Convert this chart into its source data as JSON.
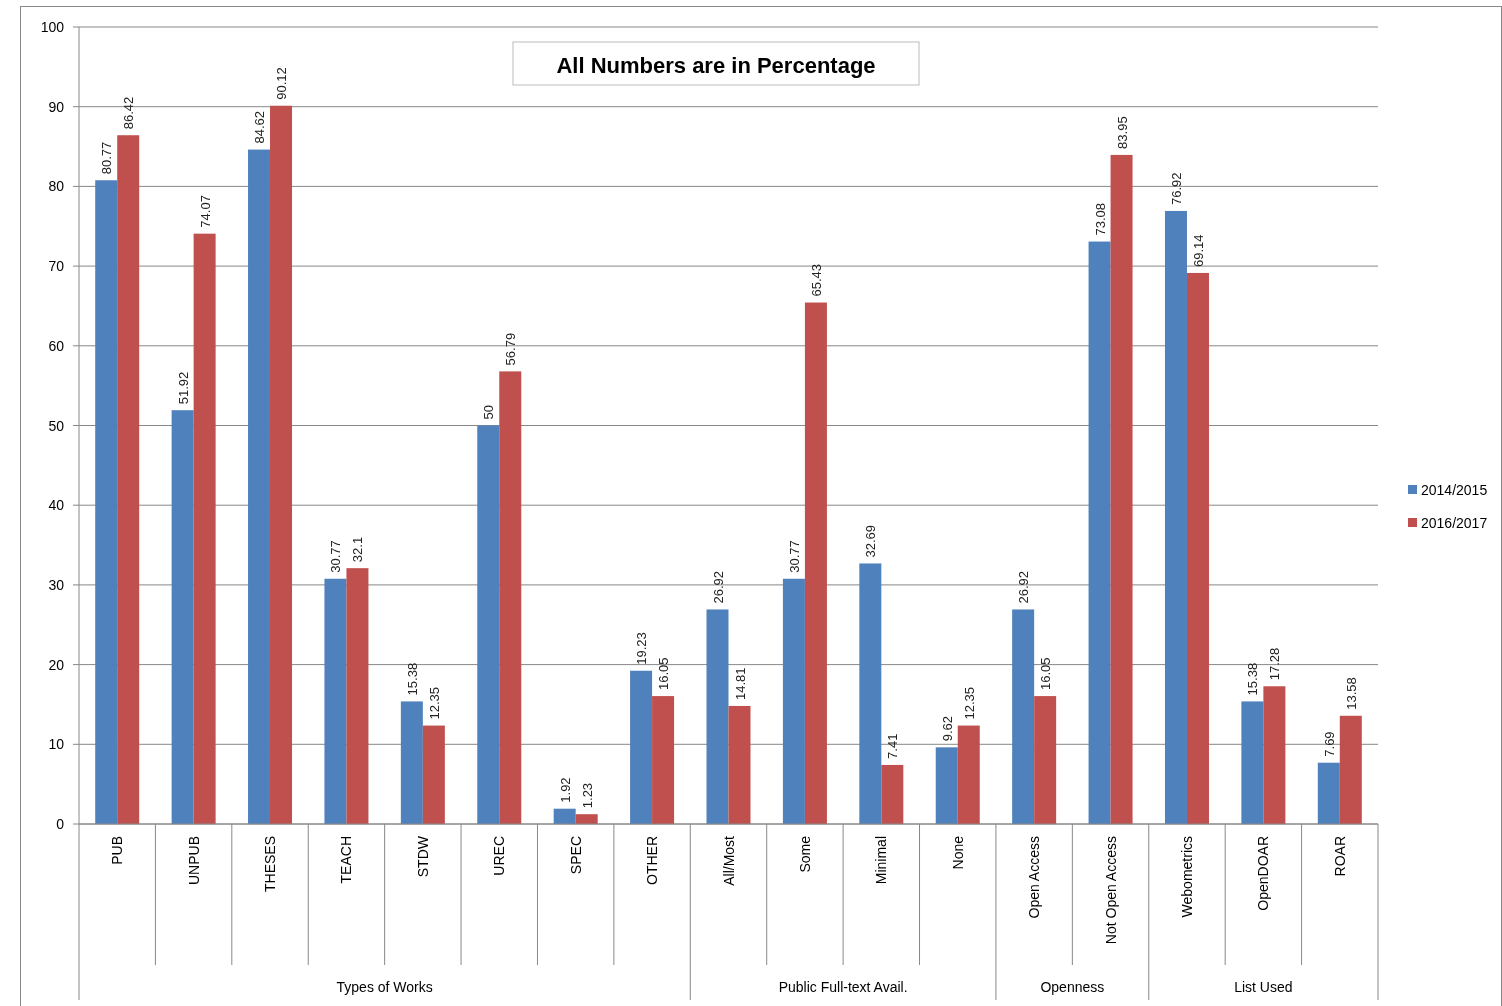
{
  "chart_data": {
    "type": "bar",
    "title": "All Numbers are in Percentage",
    "categories": [
      "PUB",
      "UNPUB",
      "THESES",
      "TEACH",
      "STDW",
      "UREC",
      "SPEC",
      "OTHER",
      "All/Most",
      "Some",
      "Minimal",
      "None",
      "Open Access",
      "Not Open Access",
      "Webometrics",
      "OpenDOAR",
      "ROAR"
    ],
    "series": [
      {
        "name": "2014/2015",
        "color": "#4f81bd",
        "values": [
          80.77,
          51.92,
          84.62,
          30.77,
          15.38,
          50,
          1.92,
          19.23,
          26.92,
          30.77,
          32.69,
          9.62,
          26.92,
          73.08,
          76.92,
          15.38,
          7.69
        ]
      },
      {
        "name": "2016/2017",
        "color": "#c0504d",
        "values": [
          86.42,
          74.07,
          90.12,
          32.1,
          12.35,
          56.79,
          1.23,
          16.05,
          14.81,
          65.43,
          7.41,
          12.35,
          16.05,
          83.95,
          69.14,
          17.28,
          13.58
        ]
      }
    ],
    "annotations": [
      "Types of Works",
      "Public Full-text Avail.",
      "Openness",
      "List Used"
    ],
    "ylim": [
      0,
      100
    ],
    "yticks": [
      0,
      10,
      20,
      30,
      40,
      50,
      60,
      70,
      80,
      90,
      100
    ],
    "grid": "y",
    "legend": "right",
    "data_labels": true
  }
}
